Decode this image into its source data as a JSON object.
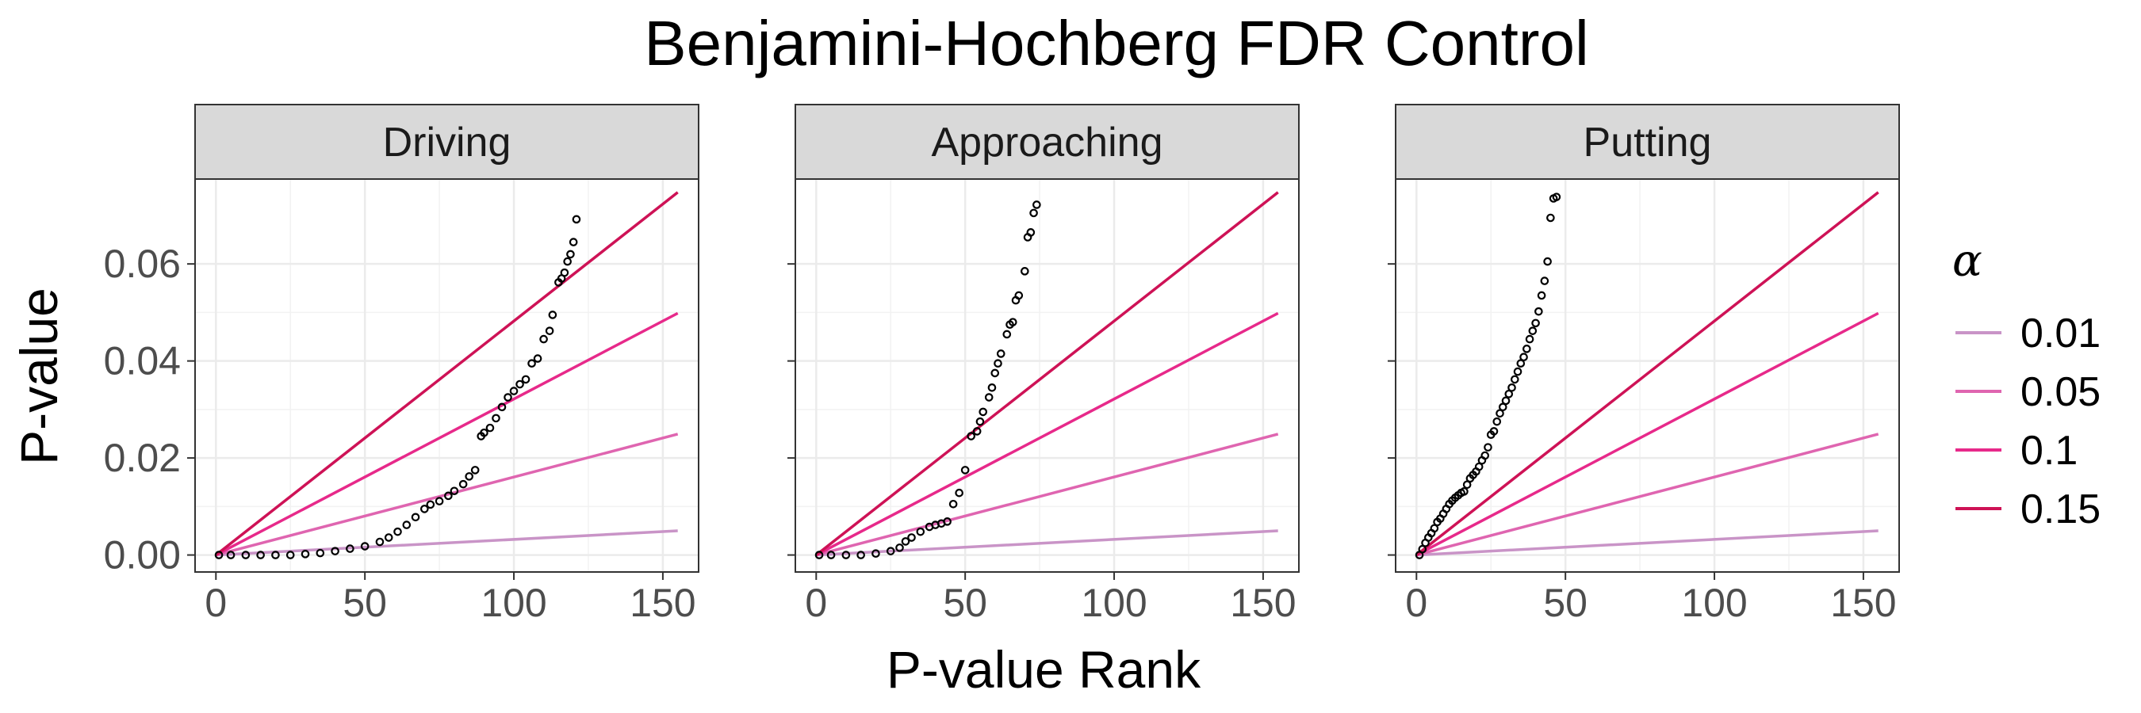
{
  "chart_data": {
    "type": "scatter",
    "title": "Benjamini-Hochberg FDR Control",
    "xlabel": "P-value Rank",
    "ylabel": "P-value",
    "xlim": [
      -7,
      162
    ],
    "ylim": [
      -0.0035,
      0.0775
    ],
    "x_ticks": [
      0,
      50,
      100,
      150
    ],
    "x_tick_labels": [
      "0",
      "50",
      "100",
      "150"
    ],
    "y_ticks": [
      0,
      0.02,
      0.04,
      0.06
    ],
    "y_tick_labels": [
      "0.00",
      "0.02",
      "0.04",
      "0.06"
    ],
    "grid": true,
    "legend": {
      "title": "α",
      "placement": "right",
      "entries": [
        {
          "label": "0.01",
          "alpha": 0.01,
          "color": "#c994c7"
        },
        {
          "label": "0.05",
          "alpha": 0.05,
          "color": "#df65b0"
        },
        {
          "label": "0.1",
          "alpha": 0.1,
          "color": "#e7298a"
        },
        {
          "label": "0.15",
          "alpha": 0.15,
          "color": "#ce1256"
        }
      ]
    },
    "bh_lines": {
      "m": 311,
      "x_max": 155
    },
    "point_color": "#000000",
    "panels": [
      {
        "name": "Driving",
        "points": [
          [
            1,
            0.0
          ],
          [
            5,
            0.0
          ],
          [
            10,
            0.0
          ],
          [
            15,
            0.0
          ],
          [
            20,
            0.0
          ],
          [
            25,
            0.0
          ],
          [
            30,
            0.0002
          ],
          [
            35,
            0.0004
          ],
          [
            40,
            0.0008
          ],
          [
            45,
            0.0013
          ],
          [
            50,
            0.0018
          ],
          [
            55,
            0.0027
          ],
          [
            58,
            0.0036
          ],
          [
            61,
            0.0048
          ],
          [
            64,
            0.0062
          ],
          [
            67,
            0.0078
          ],
          [
            70,
            0.0095
          ],
          [
            72,
            0.0104
          ],
          [
            75,
            0.0111
          ],
          [
            78,
            0.0122
          ],
          [
            80,
            0.0132
          ],
          [
            83,
            0.0146
          ],
          [
            85,
            0.0162
          ],
          [
            87,
            0.0175
          ],
          [
            89,
            0.0245
          ],
          [
            90,
            0.0252
          ],
          [
            92,
            0.0262
          ],
          [
            94,
            0.0282
          ],
          [
            96,
            0.0305
          ],
          [
            98,
            0.0325
          ],
          [
            100,
            0.0338
          ],
          [
            102,
            0.0352
          ],
          [
            104,
            0.0362
          ],
          [
            106,
            0.0395
          ],
          [
            108,
            0.0405
          ],
          [
            110,
            0.0445
          ],
          [
            112,
            0.0462
          ],
          [
            113,
            0.0495
          ],
          [
            115,
            0.0562
          ],
          [
            116,
            0.057
          ],
          [
            117,
            0.0582
          ],
          [
            118,
            0.0605
          ],
          [
            119,
            0.062
          ],
          [
            120,
            0.0645
          ],
          [
            121,
            0.0692
          ]
        ]
      },
      {
        "name": "Approaching",
        "points": [
          [
            1,
            0.0
          ],
          [
            5,
            0.0
          ],
          [
            10,
            0.0
          ],
          [
            15,
            0.0
          ],
          [
            20,
            0.0003
          ],
          [
            25,
            0.0008
          ],
          [
            28,
            0.0015
          ],
          [
            30,
            0.0028
          ],
          [
            32,
            0.0036
          ],
          [
            35,
            0.0048
          ],
          [
            38,
            0.0058
          ],
          [
            40,
            0.0062
          ],
          [
            42,
            0.0065
          ],
          [
            44,
            0.0069
          ],
          [
            46,
            0.0105
          ],
          [
            48,
            0.0128
          ],
          [
            50,
            0.0175
          ],
          [
            52,
            0.0245
          ],
          [
            54,
            0.0255
          ],
          [
            55,
            0.0275
          ],
          [
            56,
            0.0295
          ],
          [
            58,
            0.0325
          ],
          [
            59,
            0.0345
          ],
          [
            60,
            0.0375
          ],
          [
            61,
            0.0395
          ],
          [
            62,
            0.0415
          ],
          [
            64,
            0.0455
          ],
          [
            65,
            0.0475
          ],
          [
            66,
            0.048
          ],
          [
            67,
            0.0525
          ],
          [
            68,
            0.0535
          ],
          [
            70,
            0.0585
          ],
          [
            71,
            0.0655
          ],
          [
            72,
            0.0665
          ],
          [
            73,
            0.0705
          ],
          [
            74,
            0.0722
          ]
        ]
      },
      {
        "name": "Putting",
        "points": [
          [
            1,
            0.0
          ],
          [
            2,
            0.0012
          ],
          [
            3,
            0.0025
          ],
          [
            4,
            0.0036
          ],
          [
            5,
            0.0045
          ],
          [
            6,
            0.0055
          ],
          [
            7,
            0.0068
          ],
          [
            8,
            0.0075
          ],
          [
            9,
            0.0085
          ],
          [
            10,
            0.0095
          ],
          [
            11,
            0.0105
          ],
          [
            12,
            0.0112
          ],
          [
            13,
            0.0118
          ],
          [
            14,
            0.0123
          ],
          [
            15,
            0.0128
          ],
          [
            16,
            0.0131
          ],
          [
            17,
            0.0145
          ],
          [
            18,
            0.0158
          ],
          [
            19,
            0.0165
          ],
          [
            20,
            0.0172
          ],
          [
            21,
            0.0182
          ],
          [
            22,
            0.0195
          ],
          [
            23,
            0.0205
          ],
          [
            24,
            0.0222
          ],
          [
            25,
            0.0248
          ],
          [
            26,
            0.0255
          ],
          [
            27,
            0.0275
          ],
          [
            28,
            0.0292
          ],
          [
            29,
            0.0305
          ],
          [
            30,
            0.0318
          ],
          [
            31,
            0.0332
          ],
          [
            32,
            0.0345
          ],
          [
            33,
            0.0362
          ],
          [
            34,
            0.0378
          ],
          [
            35,
            0.0395
          ],
          [
            36,
            0.0408
          ],
          [
            37,
            0.0425
          ],
          [
            38,
            0.0445
          ],
          [
            39,
            0.0462
          ],
          [
            40,
            0.0478
          ],
          [
            41,
            0.0502
          ],
          [
            42,
            0.0535
          ],
          [
            43,
            0.0565
          ],
          [
            44,
            0.0605
          ],
          [
            45,
            0.0695
          ],
          [
            46,
            0.0735
          ],
          [
            47,
            0.0738
          ]
        ]
      }
    ]
  }
}
